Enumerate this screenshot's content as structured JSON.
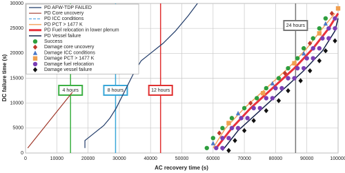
{
  "chart_data": {
    "type": "scatter",
    "x_label": "AC recovery time (s)",
    "y_label": "DC failure time (s)",
    "xlim": [
      0,
      100000
    ],
    "xticks": [
      0,
      10000,
      20000,
      30000,
      40000,
      50000,
      60000,
      70000,
      80000,
      90000,
      100000
    ],
    "ylim": [
      0,
      30000
    ],
    "yticks": [
      0,
      5000,
      10000,
      15000,
      20000,
      25000,
      30000
    ],
    "grid": true,
    "legend": "upper left",
    "reference_lines": [
      {
        "x": 14400,
        "label": "4 hours",
        "color": "#3cb043"
      },
      {
        "x": 28800,
        "label": "8 hours",
        "color": "#3aa7d8"
      },
      {
        "x": 43200,
        "label": "12 hours",
        "color": "#e03030"
      },
      {
        "x": 86400,
        "label": "24 hours",
        "color": "#777777"
      }
    ],
    "series": [
      {
        "name": "PD AFW-TDP FAILED",
        "kind": "line",
        "color": "#1f3a68",
        "width": 1.2,
        "x": [
          19000,
          19000,
          20000,
          22000,
          25000,
          27000,
          29000,
          31000,
          33000,
          35000,
          37000,
          40000,
          44000,
          48000,
          52000,
          55000
        ],
        "y": [
          1000,
          2500,
          3000,
          4000,
          5500,
          7000,
          9000,
          11500,
          14000,
          16500,
          18500,
          20000,
          22000,
          24500,
          27500,
          30000
        ]
      },
      {
        "name": "PD Core uncovery",
        "kind": "line",
        "color": "#a0382a",
        "width": 1.2,
        "x": [
          700,
          15000
        ],
        "y": [
          1000,
          12200
        ]
      },
      {
        "name": "PD ICC conditions",
        "kind": "line",
        "color": "#5aa9e6",
        "width": 1.2,
        "dashed": true,
        "x": [],
        "y": []
      },
      {
        "name": "PD PCT > 1477 K",
        "kind": "line",
        "color": "#f4a460",
        "width": 1.5,
        "x": [
          60000,
          64000,
          70000,
          77000,
          84000,
          90000,
          95000,
          99000
        ],
        "y": [
          1000,
          5000,
          9000,
          13000,
          17000,
          21000,
          25000,
          28000
        ]
      },
      {
        "name": "PD Fuel relocation in lower plenum",
        "kind": "line",
        "color": "#e8323c",
        "width": 3,
        "x": [
          61000,
          66000,
          72000,
          79000,
          86000,
          92000,
          97000,
          100000
        ],
        "y": [
          1000,
          5000,
          9000,
          13000,
          17000,
          21000,
          25000,
          28000
        ]
      },
      {
        "name": "PD Vessel failure",
        "kind": "line",
        "color": "#14204a",
        "width": 1.5,
        "x": [
          63000,
          68000,
          75000,
          82000,
          89000,
          95000,
          99000,
          100000
        ],
        "y": [
          500,
          4500,
          8500,
          12500,
          16500,
          20500,
          24500,
          27000
        ]
      },
      {
        "name": "Success",
        "kind": "scatter",
        "marker": "circle",
        "color": "#2e9e3e",
        "x": [
          58000,
          60000,
          63000,
          66000,
          70000,
          74000,
          77000,
          81000,
          84000,
          87000,
          89000,
          92000,
          94000,
          96000
        ],
        "y": [
          1000,
          3000,
          5000,
          7000,
          9000,
          11000,
          13000,
          15000,
          17000,
          19000,
          21000,
          23000,
          25000,
          27000
        ]
      },
      {
        "name": "Damage core uncovery",
        "kind": "scatter",
        "marker": "diamond",
        "color": "#c0392b",
        "x": [
          62000,
          72000,
          83000,
          91000,
          98000
        ],
        "y": [
          4000,
          10000,
          16000,
          22000,
          28000
        ]
      },
      {
        "name": "Damage ICC conditions",
        "kind": "scatter",
        "marker": "triangle",
        "color": "#4a78c8",
        "x": [
          60000,
          68000,
          79000,
          89000,
          96000
        ],
        "y": [
          2000,
          8000,
          14000,
          20000,
          26000
        ]
      },
      {
        "name": "Damage PCT > 1477 K",
        "kind": "scatter",
        "marker": "square",
        "color": "#f0a050",
        "x": [
          65000,
          76000,
          86000,
          94000,
          100000
        ],
        "y": [
          6000,
          12000,
          18000,
          24000,
          29000
        ]
      },
      {
        "name": "Damage fuel relocation",
        "kind": "scatter",
        "marker": "circle",
        "color": "#7b3fb5",
        "x": [
          61000,
          63000,
          63000,
          65000,
          66000,
          68000,
          69000,
          71000,
          73000,
          75000,
          77000,
          79000,
          80000,
          82000,
          84000,
          86000,
          87000,
          89000,
          90000,
          92000,
          92000,
          94000,
          95000,
          97000,
          97000,
          99000,
          99000
        ],
        "y": [
          1000,
          1000,
          3000,
          3000,
          5000,
          5000,
          7000,
          7000,
          9000,
          9000,
          11000,
          11000,
          13000,
          13000,
          15000,
          15000,
          17000,
          17000,
          19000,
          19000,
          21000,
          21000,
          23000,
          23000,
          25000,
          25000,
          27000
        ]
      },
      {
        "name": "Damage vessel failure",
        "kind": "scatter",
        "marker": "diamond",
        "color": "#111111",
        "x": [
          65000,
          67000,
          70000,
          73000,
          77000,
          81000,
          84000,
          88000,
          91000,
          94000,
          96000,
          99000
        ],
        "y": [
          500,
          2500,
          4500,
          6500,
          8500,
          10500,
          12500,
          14500,
          16500,
          18500,
          20500,
          22500
        ]
      }
    ]
  }
}
